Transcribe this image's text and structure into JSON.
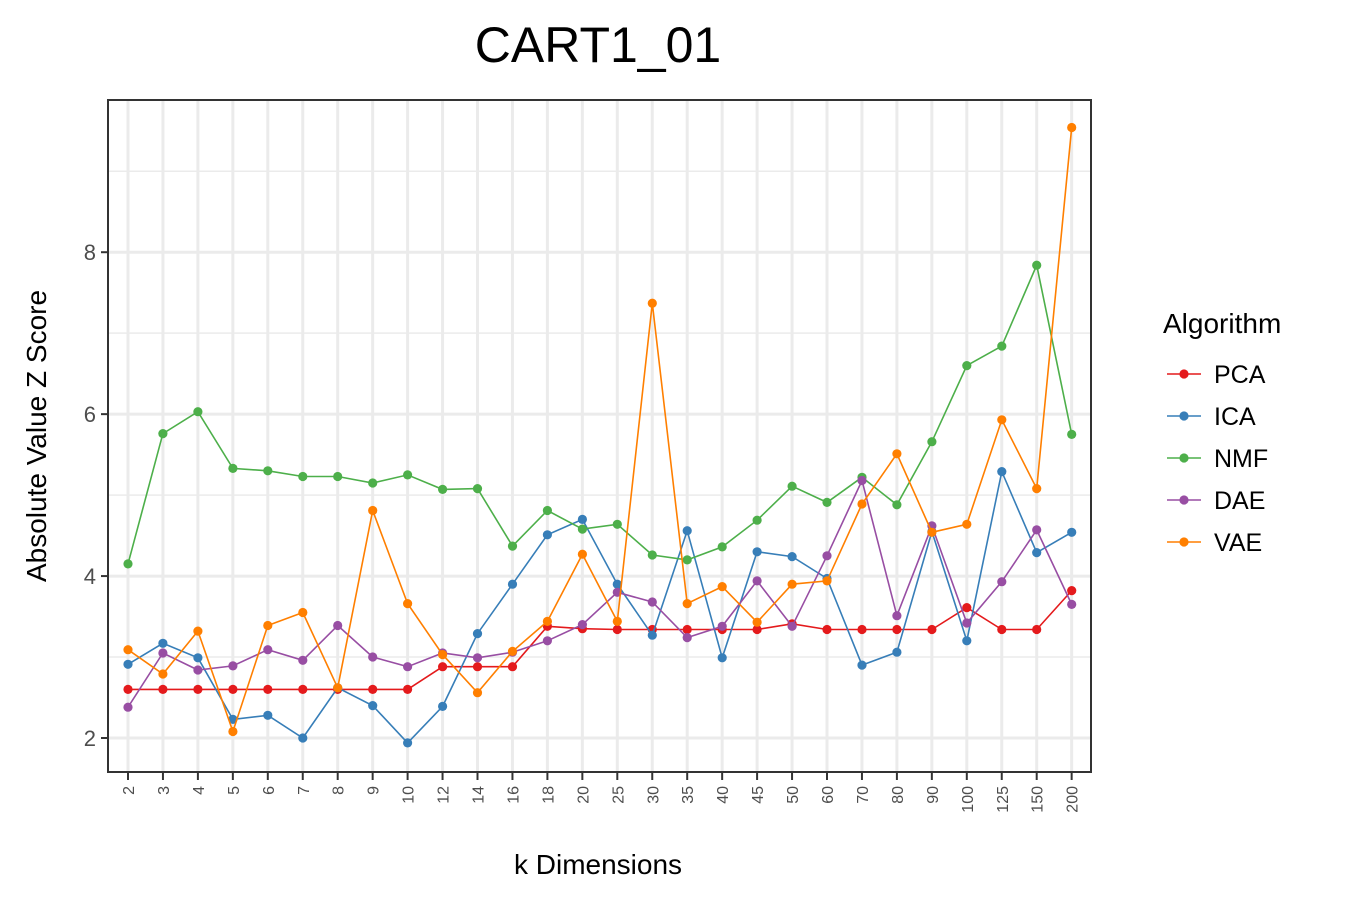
{
  "chart_data": {
    "type": "line",
    "title": "CART1_01",
    "xlabel": "k Dimensions",
    "ylabel": "Absolute Value Z Score",
    "categories": [
      "2",
      "3",
      "4",
      "5",
      "6",
      "7",
      "8",
      "9",
      "10",
      "12",
      "14",
      "16",
      "18",
      "20",
      "25",
      "30",
      "35",
      "40",
      "45",
      "50",
      "60",
      "70",
      "80",
      "90",
      "100",
      "125",
      "150",
      "200"
    ],
    "yticks": [
      2,
      4,
      6,
      8
    ],
    "ylim": [
      1.58,
      9.88
    ],
    "grid": true,
    "legend": {
      "title": "Algorithm",
      "position": "right"
    },
    "series": [
      {
        "name": "PCA",
        "color": "#E41A1C",
        "values": [
          2.6,
          2.6,
          2.6,
          2.6,
          2.6,
          2.6,
          2.6,
          2.6,
          2.6,
          2.88,
          2.88,
          2.88,
          3.38,
          3.35,
          3.34,
          3.34,
          3.34,
          3.34,
          3.34,
          3.41,
          3.34,
          3.34,
          3.34,
          3.34,
          3.61,
          3.34,
          3.34,
          3.82
        ]
      },
      {
        "name": "ICA",
        "color": "#377EB8",
        "values": [
          2.91,
          3.17,
          2.99,
          2.23,
          2.28,
          2.0,
          2.62,
          2.4,
          1.94,
          2.39,
          3.29,
          3.9,
          4.51,
          4.7,
          3.9,
          3.27,
          4.56,
          2.99,
          4.3,
          4.24,
          3.97,
          2.9,
          3.06,
          4.55,
          3.2,
          5.29,
          4.29,
          4.54
        ]
      },
      {
        "name": "NMF",
        "color": "#4DAF4A",
        "values": [
          4.15,
          5.76,
          6.03,
          5.33,
          5.3,
          5.23,
          5.23,
          5.15,
          5.25,
          5.07,
          5.08,
          4.37,
          4.81,
          4.58,
          4.64,
          4.26,
          4.2,
          4.36,
          4.69,
          5.11,
          4.91,
          5.22,
          4.88,
          5.66,
          6.6,
          6.84,
          7.84,
          5.75
        ]
      },
      {
        "name": "DAE",
        "color": "#984EA3",
        "values": [
          2.38,
          3.05,
          2.84,
          2.89,
          3.09,
          2.96,
          3.39,
          3.0,
          2.88,
          3.05,
          2.99,
          3.06,
          3.2,
          3.4,
          3.8,
          3.68,
          3.24,
          3.38,
          3.94,
          3.38,
          4.25,
          5.18,
          3.51,
          4.62,
          3.42,
          3.93,
          4.57,
          3.65
        ]
      },
      {
        "name": "VAE",
        "color": "#FF7F00",
        "values": [
          3.09,
          2.79,
          3.32,
          2.08,
          3.39,
          3.55,
          2.62,
          4.81,
          3.66,
          3.03,
          2.56,
          3.07,
          3.44,
          4.27,
          3.44,
          7.37,
          3.66,
          3.87,
          3.43,
          3.9,
          3.94,
          4.89,
          5.51,
          4.54,
          4.64,
          5.93,
          5.08,
          9.54
        ]
      }
    ]
  }
}
